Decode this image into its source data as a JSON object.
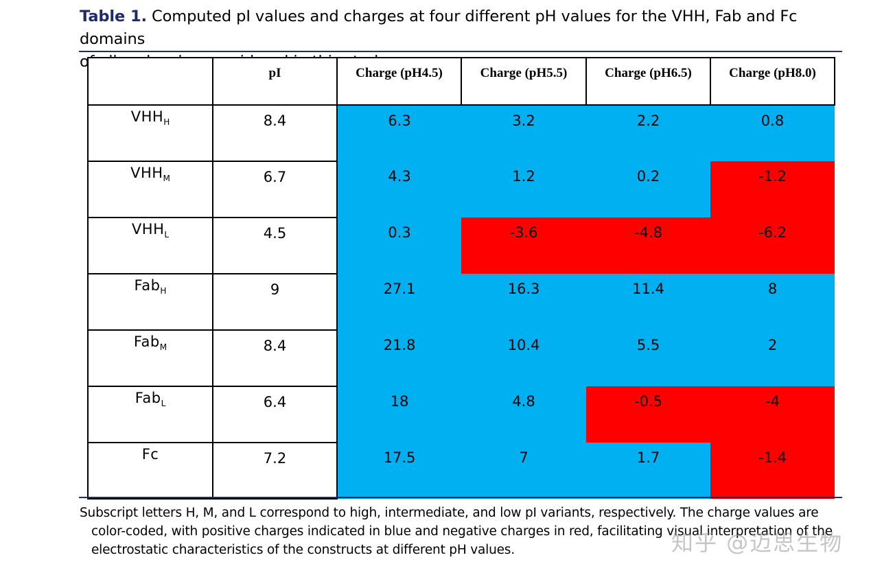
{
  "caption": {
    "label": "Table 1.",
    "text_line1": " Computed pI values and charges at four different pH values for the VHH, Fab and Fc domains",
    "text_line2": "of all molecules considered in this study."
  },
  "table": {
    "headers": [
      "",
      "pI",
      "Charge (pH4.5)",
      "Charge (pH5.5)",
      "Charge (pH6.5)",
      "Charge (pH8.0)"
    ],
    "rows": [
      {
        "name": "VHH",
        "sub": "H",
        "pi": "8.4",
        "charges": [
          "6.3",
          "3.2",
          "2.2",
          "0.8"
        ]
      },
      {
        "name": "VHH",
        "sub": "M",
        "pi": "6.7",
        "charges": [
          "4.3",
          "1.2",
          "0.2",
          "-1.2"
        ]
      },
      {
        "name": "VHH",
        "sub": "L",
        "pi": "4.5",
        "charges": [
          "0.3",
          "-3.6",
          "-4.8",
          "-6.2"
        ]
      },
      {
        "name": "Fab",
        "sub": "H",
        "pi": "9",
        "charges": [
          "27.1",
          "16.3",
          "11.4",
          "8"
        ]
      },
      {
        "name": "Fab",
        "sub": "M",
        "pi": "8.4",
        "charges": [
          "21.8",
          "10.4",
          "5.5",
          "2"
        ]
      },
      {
        "name": "Fab",
        "sub": "L",
        "pi": "6.4",
        "charges": [
          "18",
          "4.8",
          "-0.5",
          "-4"
        ]
      },
      {
        "name": "Fc",
        "sub": "",
        "pi": "7.2",
        "charges": [
          "17.5",
          "7",
          "1.7",
          "-1.4"
        ]
      }
    ],
    "colors": {
      "positive": "#00b0f0",
      "negative": "#ff0000"
    }
  },
  "footnote": {
    "line1": "Subscript letters H, M, and L correspond to high, intermediate, and low pI variants, respectively. The charge values are",
    "line2": "color-coded, with positive charges indicated in blue and negative charges in red, facilitating visual interpretation of the",
    "line3": "electrostatic characteristics of the constructs at different pH values."
  },
  "watermark": "知乎 @迈思生物"
}
